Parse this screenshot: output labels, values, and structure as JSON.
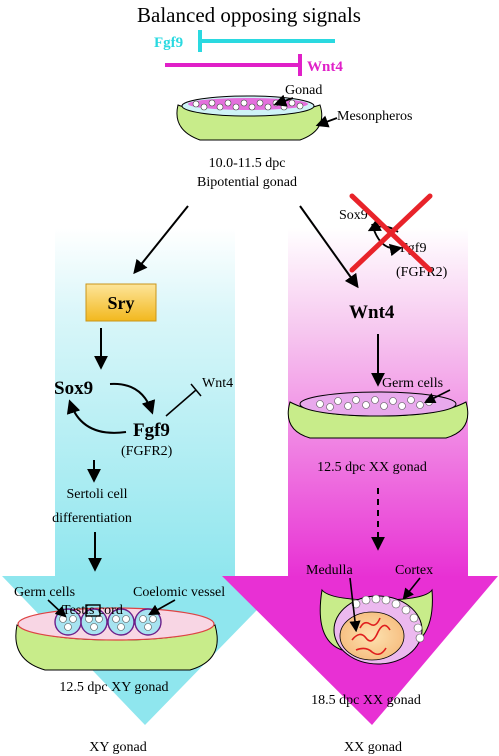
{
  "title": "Balanced opposing signals",
  "top_signals": {
    "fgf9": "Fgf9",
    "wnt4": "Wnt4",
    "colors": {
      "fgf9": "#2ad9e0",
      "wnt4": "#e020c8"
    }
  },
  "top_gonad": {
    "gonad_label": "Gonad",
    "mesonephros_label": "Mesonpheros",
    "stage": "10.0-11.5 dpc",
    "state": "Bipotential gonad"
  },
  "male_path": {
    "sry": "Sry",
    "sox9": "Sox9",
    "fgf9": "Fgf9",
    "fgfr2": "(FGFR2)",
    "wnt4": "Wnt4",
    "sertoli_line1": "Sertoli cell",
    "sertoli_line2": "differentiation",
    "germ_cells": "Germ cells",
    "testis_cord": "Testis cord",
    "coelomic_vessel": "Coelomic vessel",
    "gonad_stage": "12.5 dpc XY gonad",
    "outcome": "XY gonad",
    "colors": {
      "arrow": "#8fe6ee",
      "sry_box": "#f5c533"
    }
  },
  "female_path": {
    "sox9": "Sox9",
    "fgf9": "Fgf9",
    "fgfr2": "(FGFR2)",
    "wnt4": "Wnt4",
    "germ_cells": "Germ cells",
    "gonad_stage_1": "12.5 dpc XX gonad",
    "medulla": "Medulla",
    "cortex": "Cortex",
    "gonad_stage_2": "18.5 dpc XX gonad",
    "outcome": "XX gonad",
    "colors": {
      "arrow": "#e830d4",
      "cross": "#e8232a"
    }
  }
}
